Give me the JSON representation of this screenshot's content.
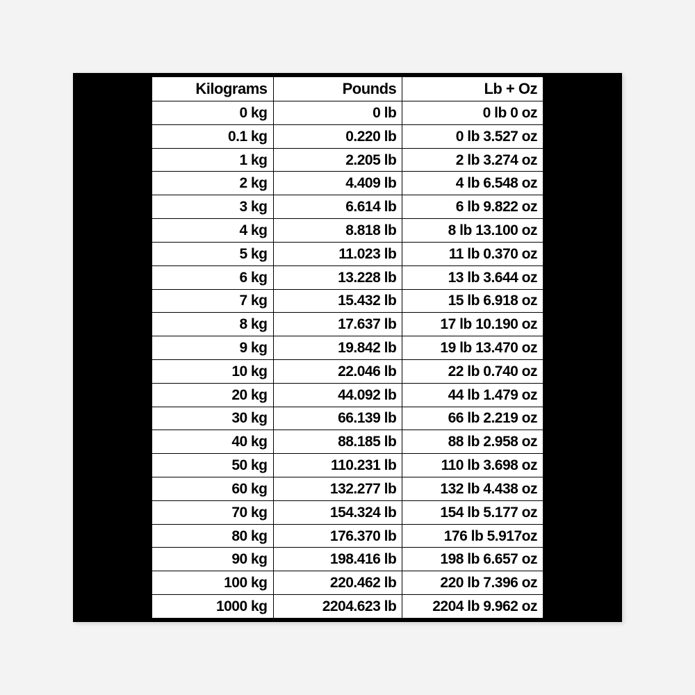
{
  "conversion_table": {
    "type": "table",
    "background_color": "#ffffff",
    "frame_color": "#000000",
    "page_background": "#f3f3f3",
    "border_color": "#000000",
    "text_color": "#000000",
    "header_fontsize": 22,
    "cell_fontsize": 21,
    "font_weight": 700,
    "font_family": "Arial Narrow",
    "alignment": "right",
    "column_widths_pct": [
      31,
      33,
      36
    ],
    "columns": [
      "Kilograms",
      "Pounds",
      "Lb + Oz"
    ],
    "rows": [
      [
        "0 kg",
        "0 lb",
        "0 lb 0 oz"
      ],
      [
        "0.1 kg",
        "0.220 lb",
        "0 lb 3.527 oz"
      ],
      [
        "1 kg",
        "2.205 lb",
        "2 lb 3.274 oz"
      ],
      [
        "2 kg",
        "4.409 lb",
        "4 lb 6.548 oz"
      ],
      [
        "3 kg",
        "6.614 lb",
        "6 lb 9.822 oz"
      ],
      [
        "4 kg",
        "8.818 lb",
        "8 lb 13.100 oz"
      ],
      [
        "5 kg",
        "11.023 lb",
        "11 lb 0.370 oz"
      ],
      [
        "6 kg",
        "13.228 lb",
        "13 lb 3.644 oz"
      ],
      [
        "7 kg",
        "15.432 lb",
        "15 lb 6.918 oz"
      ],
      [
        "8 kg",
        "17.637 lb",
        "17 lb 10.190 oz"
      ],
      [
        "9 kg",
        "19.842 lb",
        "19 lb 13.470 oz"
      ],
      [
        "10 kg",
        "22.046 lb",
        "22 lb 0.740 oz"
      ],
      [
        "20 kg",
        "44.092 lb",
        "44 lb 1.479 oz"
      ],
      [
        "30 kg",
        "66.139 lb",
        "66 lb 2.219 oz"
      ],
      [
        "40 kg",
        "88.185 lb",
        "88 lb 2.958 oz"
      ],
      [
        "50 kg",
        "110.231 lb",
        "110 lb 3.698 oz"
      ],
      [
        "60 kg",
        "132.277 lb",
        "132 lb 4.438 oz"
      ],
      [
        "70 kg",
        "154.324 lb",
        "154 lb 5.177 oz"
      ],
      [
        "80 kg",
        "176.370 lb",
        "176 lb 5.917oz"
      ],
      [
        "90 kg",
        "198.416 lb",
        "198 lb 6.657 oz"
      ],
      [
        "100 kg",
        "220.462 lb",
        "220 lb 7.396 oz"
      ],
      [
        "1000 kg",
        "2204.623 lb",
        "2204 lb 9.962 oz"
      ]
    ]
  }
}
